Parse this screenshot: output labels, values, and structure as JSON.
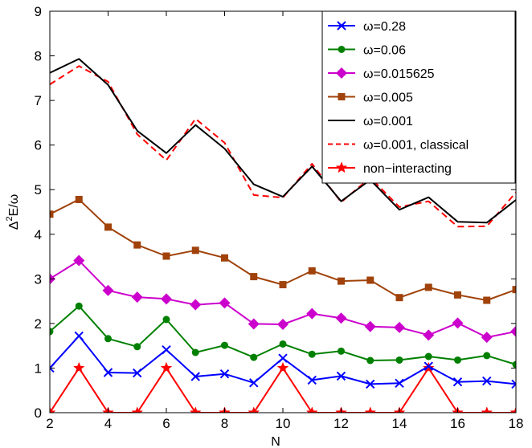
{
  "chart_data": {
    "type": "line",
    "xlabel": "N",
    "ylabel_main": "Δ",
    "ylabel_sup": "2",
    "ylabel_rest": "E/ω",
    "xlim": [
      2,
      18
    ],
    "ylim": [
      0,
      9
    ],
    "x_ticks": [
      "2",
      "4",
      "6",
      "8",
      "10",
      "12",
      "14",
      "16",
      "18"
    ],
    "y_ticks": [
      "0",
      "1",
      "2",
      "3",
      "4",
      "5",
      "6",
      "7",
      "8",
      "9"
    ],
    "x": [
      2,
      3,
      4,
      5,
      6,
      7,
      8,
      9,
      10,
      11,
      12,
      13,
      14,
      15,
      16,
      17,
      18
    ],
    "grid": false,
    "legend_position": "top-right",
    "series": [
      {
        "name": "ω=0.28",
        "color": "#0000ff",
        "marker": "x",
        "dash": "",
        "values": [
          1.0,
          1.72,
          0.9,
          0.89,
          1.41,
          0.81,
          0.87,
          0.67,
          1.22,
          0.73,
          0.82,
          0.64,
          0.66,
          1.04,
          0.69,
          0.71,
          0.64
        ]
      },
      {
        "name": "ω=0.06",
        "color": "#008000",
        "marker": "dot",
        "dash": "",
        "values": [
          1.82,
          2.39,
          1.66,
          1.48,
          2.09,
          1.35,
          1.51,
          1.24,
          1.54,
          1.31,
          1.38,
          1.17,
          1.18,
          1.26,
          1.18,
          1.28,
          1.08
        ]
      },
      {
        "name": "ω=0.015625",
        "color": "#cc00cc",
        "marker": "diamond",
        "dash": "",
        "values": [
          3.0,
          3.41,
          2.74,
          2.59,
          2.55,
          2.42,
          2.46,
          1.99,
          1.98,
          2.22,
          2.12,
          1.93,
          1.91,
          1.74,
          2.01,
          1.69,
          1.82
        ]
      },
      {
        "name": "ω=0.005",
        "color": "#a0420a",
        "marker": "square",
        "dash": "",
        "values": [
          4.45,
          4.78,
          4.16,
          3.76,
          3.51,
          3.64,
          3.47,
          3.05,
          2.87,
          3.18,
          2.95,
          2.97,
          2.58,
          2.81,
          2.64,
          2.52,
          2.76
        ]
      },
      {
        "name": "ω=0.001",
        "color": "#000000",
        "marker": "none",
        "dash": "",
        "values": [
          7.62,
          7.93,
          7.35,
          6.32,
          5.82,
          6.45,
          5.92,
          5.12,
          4.84,
          5.52,
          4.74,
          5.22,
          4.55,
          4.83,
          4.28,
          4.26,
          4.77
        ]
      },
      {
        "name": "ω=0.001, classical",
        "color": "#ff0000",
        "marker": "none",
        "dash": "8,5",
        "values": [
          7.36,
          7.77,
          7.42,
          6.24,
          5.66,
          6.59,
          6.05,
          4.88,
          4.82,
          5.58,
          4.72,
          5.27,
          4.61,
          4.74,
          4.17,
          4.18,
          4.94
        ]
      },
      {
        "name": "non−interacting",
        "color": "#ff0000",
        "marker": "star",
        "dash": "",
        "values": [
          0,
          1,
          0,
          0,
          1,
          0,
          0,
          0,
          1,
          0,
          0,
          0,
          0,
          1,
          0,
          0,
          0
        ]
      }
    ]
  }
}
